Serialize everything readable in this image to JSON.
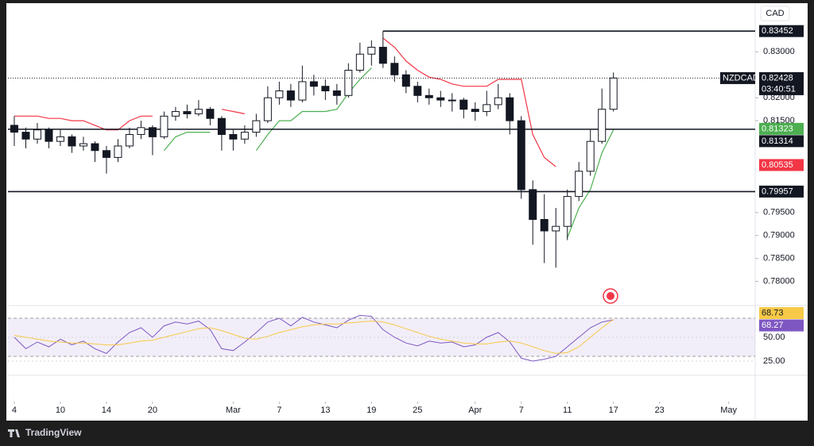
{
  "app": {
    "brand": "TradingView"
  },
  "chart_data": [
    {
      "type": "candlestick",
      "symbol": "NZDCAD",
      "currency": "CAD",
      "countdown": "03:40:51",
      "x": [
        0,
        1,
        2,
        3,
        4,
        5,
        6,
        7,
        8,
        9,
        10,
        11,
        12,
        13,
        14,
        15,
        16,
        17,
        18,
        19,
        20,
        21,
        22,
        23,
        24,
        25,
        26,
        27,
        28,
        29,
        30,
        31,
        32,
        33,
        34,
        35,
        36,
        37,
        38,
        39,
        40,
        41,
        42,
        43,
        44,
        45,
        46,
        47,
        48,
        49,
        50,
        51,
        52
      ],
      "candles": [
        [
          0.814,
          0.816,
          0.8095,
          0.8125
        ],
        [
          0.8125,
          0.8135,
          0.809,
          0.811
        ],
        [
          0.811,
          0.8145,
          0.81,
          0.813
        ],
        [
          0.813,
          0.8135,
          0.809,
          0.8105
        ],
        [
          0.8105,
          0.813,
          0.8095,
          0.8115
        ],
        [
          0.8115,
          0.812,
          0.808,
          0.8095
        ],
        [
          0.8095,
          0.8115,
          0.8085,
          0.81
        ],
        [
          0.81,
          0.8105,
          0.806,
          0.8085
        ],
        [
          0.8085,
          0.8095,
          0.8035,
          0.807
        ],
        [
          0.807,
          0.811,
          0.806,
          0.8095
        ],
        [
          0.8095,
          0.8135,
          0.809,
          0.812
        ],
        [
          0.812,
          0.815,
          0.811,
          0.8135
        ],
        [
          0.8135,
          0.814,
          0.8075,
          0.8115
        ],
        [
          0.8115,
          0.817,
          0.811,
          0.816
        ],
        [
          0.816,
          0.818,
          0.815,
          0.817
        ],
        [
          0.817,
          0.8185,
          0.8155,
          0.8165
        ],
        [
          0.8165,
          0.8195,
          0.816,
          0.8175
        ],
        [
          0.8175,
          0.818,
          0.814,
          0.8155
        ],
        [
          0.8155,
          0.816,
          0.8085,
          0.812
        ],
        [
          0.812,
          0.813,
          0.8085,
          0.811
        ],
        [
          0.811,
          0.814,
          0.81,
          0.8125
        ],
        [
          0.8125,
          0.8165,
          0.8115,
          0.815
        ],
        [
          0.815,
          0.8225,
          0.8145,
          0.82
        ],
        [
          0.82,
          0.8235,
          0.8185,
          0.8215
        ],
        [
          0.8215,
          0.823,
          0.818,
          0.8195
        ],
        [
          0.8195,
          0.827,
          0.819,
          0.8235
        ],
        [
          0.8235,
          0.825,
          0.8205,
          0.8225
        ],
        [
          0.8225,
          0.824,
          0.8195,
          0.8215
        ],
        [
          0.8215,
          0.823,
          0.8185,
          0.8205
        ],
        [
          0.8205,
          0.8275,
          0.82,
          0.826
        ],
        [
          0.826,
          0.832,
          0.8255,
          0.8295
        ],
        [
          0.8295,
          0.8325,
          0.827,
          0.831
        ],
        [
          0.831,
          0.8345,
          0.8265,
          0.8275
        ],
        [
          0.8275,
          0.829,
          0.8235,
          0.825
        ],
        [
          0.825,
          0.826,
          0.821,
          0.8225
        ],
        [
          0.8225,
          0.8235,
          0.819,
          0.8205
        ],
        [
          0.8205,
          0.822,
          0.8185,
          0.82
        ],
        [
          0.82,
          0.8215,
          0.818,
          0.8195
        ],
        [
          0.8195,
          0.821,
          0.817,
          0.8195
        ],
        [
          0.8195,
          0.82,
          0.8155,
          0.8175
        ],
        [
          0.8175,
          0.819,
          0.815,
          0.817
        ],
        [
          0.817,
          0.8215,
          0.816,
          0.8185
        ],
        [
          0.8185,
          0.823,
          0.8175,
          0.82
        ],
        [
          0.82,
          0.821,
          0.812,
          0.815
        ],
        [
          0.815,
          0.816,
          0.798,
          0.8
        ],
        [
          0.8,
          0.802,
          0.788,
          0.7935
        ],
        [
          0.7935,
          0.799,
          0.784,
          0.791
        ],
        [
          0.791,
          0.796,
          0.783,
          0.792
        ],
        [
          0.792,
          0.8,
          0.789,
          0.7985
        ],
        [
          0.7985,
          0.806,
          0.7975,
          0.804
        ],
        [
          0.804,
          0.813,
          0.803,
          0.8105
        ],
        [
          0.8105,
          0.822,
          0.81,
          0.8175
        ],
        [
          0.8175,
          0.8255,
          0.817,
          0.8243
        ]
      ],
      "up_color": "#ffffff",
      "down_color": "#131722",
      "overlays": [
        {
          "color": "#f23645",
          "values": [
            0.816,
            0.816,
            0.816,
            0.8155,
            0.8155,
            0.815,
            0.815,
            0.814,
            0.813,
            0.813,
            0.815,
            0.816,
            0.816,
            null,
            null,
            null,
            null,
            null,
            0.8175,
            0.817,
            0.8165,
            null,
            null,
            null,
            null,
            null,
            null,
            null,
            null,
            null,
            null,
            null,
            0.833,
            0.831,
            0.828,
            0.826,
            0.8245,
            0.824,
            0.823,
            0.8225,
            0.8225,
            0.8225,
            0.824,
            0.824,
            0.824,
            0.812,
            0.807,
            0.805,
            null,
            null,
            null,
            null,
            null
          ]
        },
        {
          "color": "#4caf50",
          "values": [
            null,
            null,
            null,
            null,
            null,
            null,
            null,
            null,
            null,
            null,
            null,
            null,
            null,
            0.8085,
            0.8115,
            0.8125,
            0.8125,
            0.8125,
            null,
            null,
            null,
            0.8085,
            0.812,
            0.815,
            0.815,
            0.817,
            0.817,
            0.817,
            0.8175,
            0.821,
            0.824,
            0.8265,
            null,
            null,
            null,
            null,
            null,
            null,
            null,
            null,
            null,
            null,
            null,
            null,
            null,
            null,
            null,
            null,
            0.7895,
            0.796,
            0.8,
            0.808,
            0.813
          ]
        }
      ],
      "xlim": [
        -0.55,
        64.3
      ],
      "ylim": [
        0.77475,
        0.8406
      ],
      "yticks": [
        {
          "value": 0.83,
          "label": "0.83000"
        },
        {
          "value": 0.82,
          "label": "0.82000"
        },
        {
          "value": 0.815,
          "label": "0.81500"
        },
        {
          "value": 0.795,
          "label": "0.79500"
        },
        {
          "value": 0.79,
          "label": "0.79000"
        },
        {
          "value": 0.785,
          "label": "0.78500"
        },
        {
          "value": 0.78,
          "label": "0.78000"
        }
      ],
      "xticks": [
        {
          "value": 0,
          "label": "4"
        },
        {
          "value": 4,
          "label": "10"
        },
        {
          "value": 8,
          "label": "14"
        },
        {
          "value": 12,
          "label": "20"
        },
        {
          "value": 19,
          "label": "Mar"
        },
        {
          "value": 23,
          "label": "7"
        },
        {
          "value": 27,
          "label": "13"
        },
        {
          "value": 31,
          "label": "19"
        },
        {
          "value": 35,
          "label": "25"
        },
        {
          "value": 40,
          "label": "Apr"
        },
        {
          "value": 44,
          "label": "7"
        },
        {
          "value": 48,
          "label": "11"
        },
        {
          "value": 52,
          "label": "17"
        },
        {
          "value": 56,
          "label": "23"
        },
        {
          "value": 62,
          "label": "May"
        }
      ],
      "levels": [
        {
          "value": 0.83452,
          "start": 32
        },
        {
          "value": 0.81314
        },
        {
          "value": 0.79957
        }
      ],
      "markers": [
        {
          "value": 0.81323,
          "color": "#4caf50"
        },
        {
          "value": 0.80535,
          "color": "#f23645"
        }
      ],
      "last_price": 0.82428
    },
    {
      "type": "line",
      "x": [
        0,
        1,
        2,
        3,
        4,
        5,
        6,
        7,
        8,
        9,
        10,
        11,
        12,
        13,
        14,
        15,
        16,
        17,
        18,
        19,
        20,
        21,
        22,
        23,
        24,
        25,
        26,
        27,
        28,
        29,
        30,
        31,
        32,
        33,
        34,
        35,
        36,
        37,
        38,
        39,
        40,
        41,
        42,
        43,
        44,
        45,
        46,
        47,
        48,
        49,
        50,
        51,
        52
      ],
      "series": [
        {
          "color": "#7e57c2",
          "values": [
            50,
            38,
            45,
            40,
            48,
            42,
            46,
            38,
            33,
            45,
            55,
            60,
            50,
            62,
            66,
            64,
            67,
            58,
            38,
            36,
            45,
            55,
            66,
            70,
            62,
            71,
            66,
            63,
            60,
            68,
            73,
            72,
            58,
            50,
            44,
            41,
            46,
            44,
            45,
            40,
            42,
            50,
            55,
            45,
            28,
            25,
            27,
            30,
            40,
            50,
            60,
            66,
            68.27
          ]
        },
        {
          "color": "#f7c948",
          "values": [
            52,
            50,
            48,
            46,
            45,
            44,
            44,
            43,
            42,
            42,
            44,
            46,
            47,
            50,
            53,
            56,
            59,
            60,
            57,
            53,
            49,
            48,
            51,
            55,
            58,
            61,
            63,
            64,
            64,
            65,
            66,
            67,
            66,
            63,
            59,
            55,
            51,
            48,
            46,
            44,
            43,
            43,
            45,
            46,
            44,
            40,
            36,
            33,
            34,
            40,
            50,
            60,
            68.73
          ]
        }
      ],
      "bands": [
        30,
        70
      ],
      "ylim": [
        10,
        83.33
      ],
      "yticks": [
        {
          "value": 50,
          "label": "50.00"
        },
        {
          "value": 25,
          "label": "25.00"
        }
      ]
    }
  ]
}
